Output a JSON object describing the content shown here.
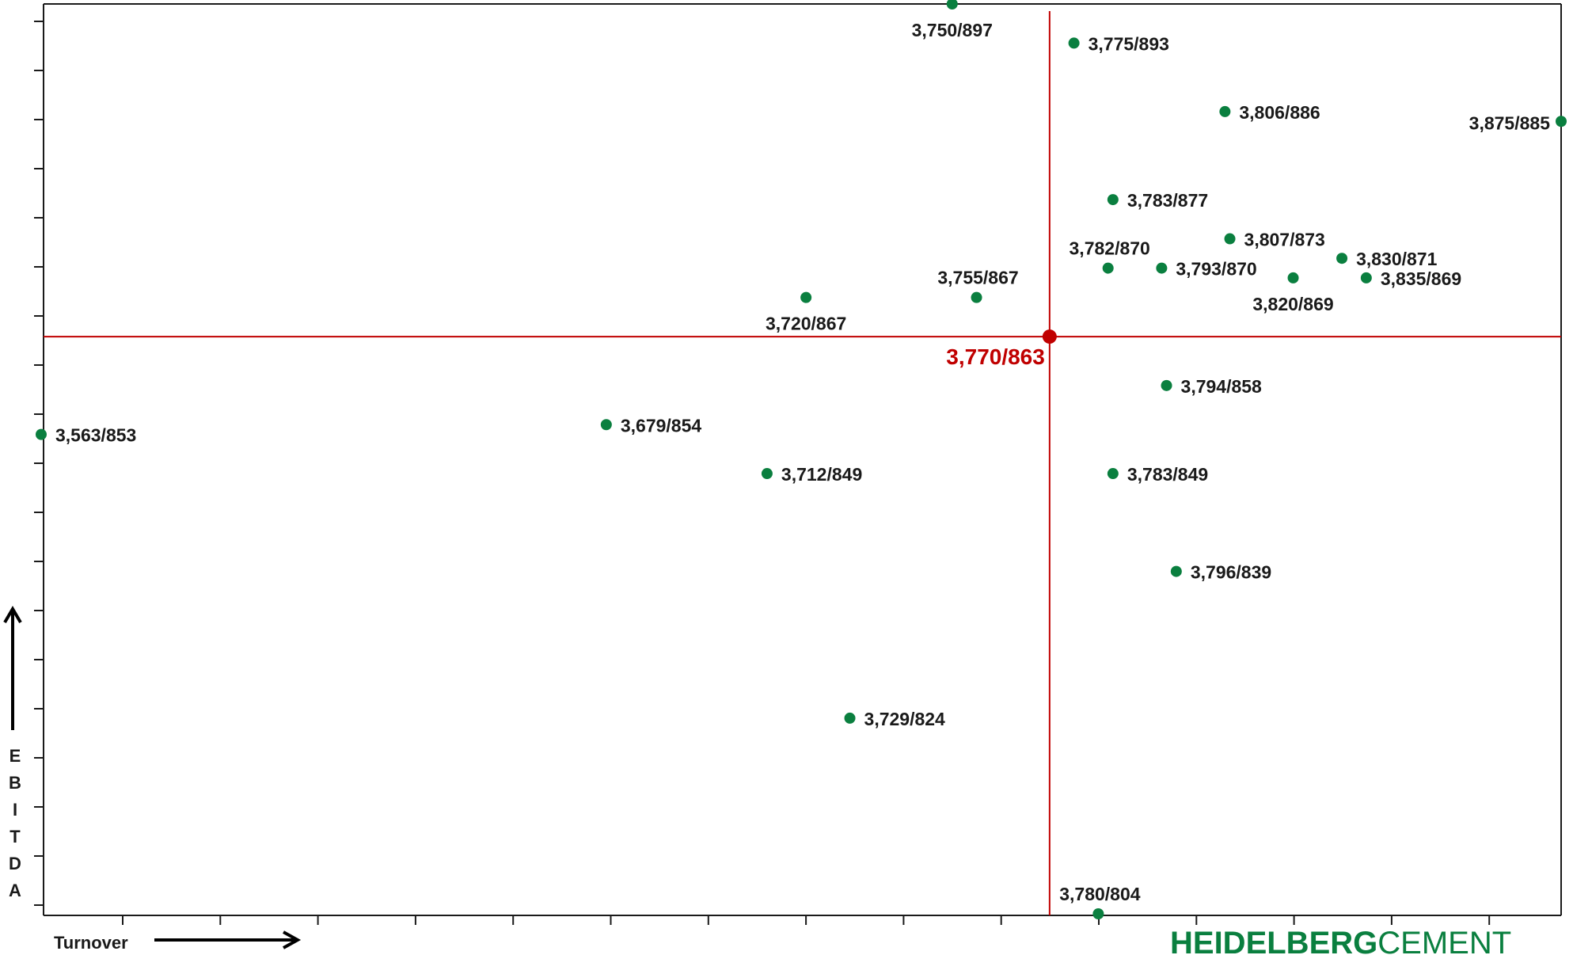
{
  "chart_data": {
    "type": "scatter",
    "xlabel": "Turnover",
    "ylabel": "EBITDA",
    "xlim": [
      3563,
      3875
    ],
    "ylim": [
      804,
      897
    ],
    "colors": {
      "points": "#0a7f3f",
      "consensus": "#c00000",
      "axis": "#1a1a1a"
    },
    "consensus": {
      "x": 3770,
      "y": 863,
      "label": "3,770/863"
    },
    "points": [
      {
        "x": 3750,
        "y": 897,
        "label": "3,750/897",
        "pos": "below"
      },
      {
        "x": 3775,
        "y": 893,
        "label": "3,775/893",
        "pos": "right"
      },
      {
        "x": 3806,
        "y": 886,
        "label": "3,806/886",
        "pos": "right"
      },
      {
        "x": 3875,
        "y": 885,
        "label": "3,875/885",
        "pos": "left"
      },
      {
        "x": 3783,
        "y": 877,
        "label": "3,783/877",
        "pos": "right"
      },
      {
        "x": 3807,
        "y": 873,
        "label": "3,807/873",
        "pos": "right"
      },
      {
        "x": 3830,
        "y": 871,
        "label": "3,830/871",
        "pos": "right"
      },
      {
        "x": 3782,
        "y": 870,
        "label": "3,782/870",
        "pos": "above"
      },
      {
        "x": 3793,
        "y": 870,
        "label": "3,793/870",
        "pos": "right"
      },
      {
        "x": 3820,
        "y": 869,
        "label": "3,820/869",
        "pos": "below"
      },
      {
        "x": 3835,
        "y": 869,
        "label": "3,835/869",
        "pos": "right"
      },
      {
        "x": 3720,
        "y": 867,
        "label": "3,720/867",
        "pos": "below"
      },
      {
        "x": 3755,
        "y": 867,
        "label": "3,755/867",
        "pos": "above"
      },
      {
        "x": 3794,
        "y": 858,
        "label": "3,794/858",
        "pos": "right"
      },
      {
        "x": 3563,
        "y": 853,
        "label": "3,563/853",
        "pos": "right"
      },
      {
        "x": 3679,
        "y": 854,
        "label": "3,679/854",
        "pos": "right"
      },
      {
        "x": 3712,
        "y": 849,
        "label": "3,712/849",
        "pos": "right"
      },
      {
        "x": 3783,
        "y": 849,
        "label": "3,783/849",
        "pos": "right"
      },
      {
        "x": 3796,
        "y": 839,
        "label": "3,796/839",
        "pos": "right"
      },
      {
        "x": 3729,
        "y": 824,
        "label": "3,729/824",
        "pos": "right"
      },
      {
        "x": 3780,
        "y": 804,
        "label": "3,780/804",
        "pos": "above"
      }
    ]
  },
  "axis_text": {
    "x_word": "Turnover",
    "y_letters": [
      "E",
      "B",
      "I",
      "T",
      "D",
      "A"
    ]
  },
  "logo": {
    "bold": "HEIDELBERG",
    "light": "CEMENT"
  }
}
